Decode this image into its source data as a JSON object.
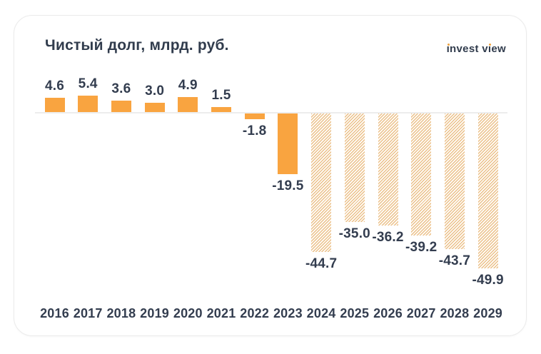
{
  "card": {
    "title": "Чистый долг, млрд. руб.",
    "logo": {
      "text": "invest view"
    }
  },
  "chart_data": {
    "type": "bar",
    "title": "Чистый долг, млрд. руб.",
    "categories": [
      "2016",
      "2017",
      "2018",
      "2019",
      "2020",
      "2021",
      "2022",
      "2023",
      "2024",
      "2025",
      "2026",
      "2027",
      "2028",
      "2029"
    ],
    "values": [
      4.6,
      5.4,
      3.6,
      3.0,
      4.9,
      1.5,
      -1.8,
      -19.5,
      -44.7,
      -35.0,
      -36.2,
      -39.2,
      -43.7,
      -49.9
    ],
    "labels": [
      "4.6",
      "5.4",
      "3.6",
      "3.0",
      "4.9",
      "1.5",
      "-1.8",
      "-19.5",
      "-44.7",
      "-35.0",
      "-36.2",
      "-39.2",
      "-43.7",
      "-49.9"
    ],
    "point_styles": [
      "solid",
      "solid",
      "solid",
      "solid",
      "solid",
      "solid",
      "solid",
      "solid",
      "hatched",
      "hatched",
      "hatched",
      "hatched",
      "hatched",
      "hatched"
    ],
    "xlabel": "",
    "ylabel": "",
    "baseline": 0,
    "grid": false,
    "legend": false,
    "value_labels_shown": true,
    "colors": {
      "bar_solid": "#f9a440",
      "bar_hatch_stripe": "#ebc08a",
      "text": "#333d4f",
      "zero_line": "#ededed",
      "logo_dot": "#f0a23c"
    }
  }
}
